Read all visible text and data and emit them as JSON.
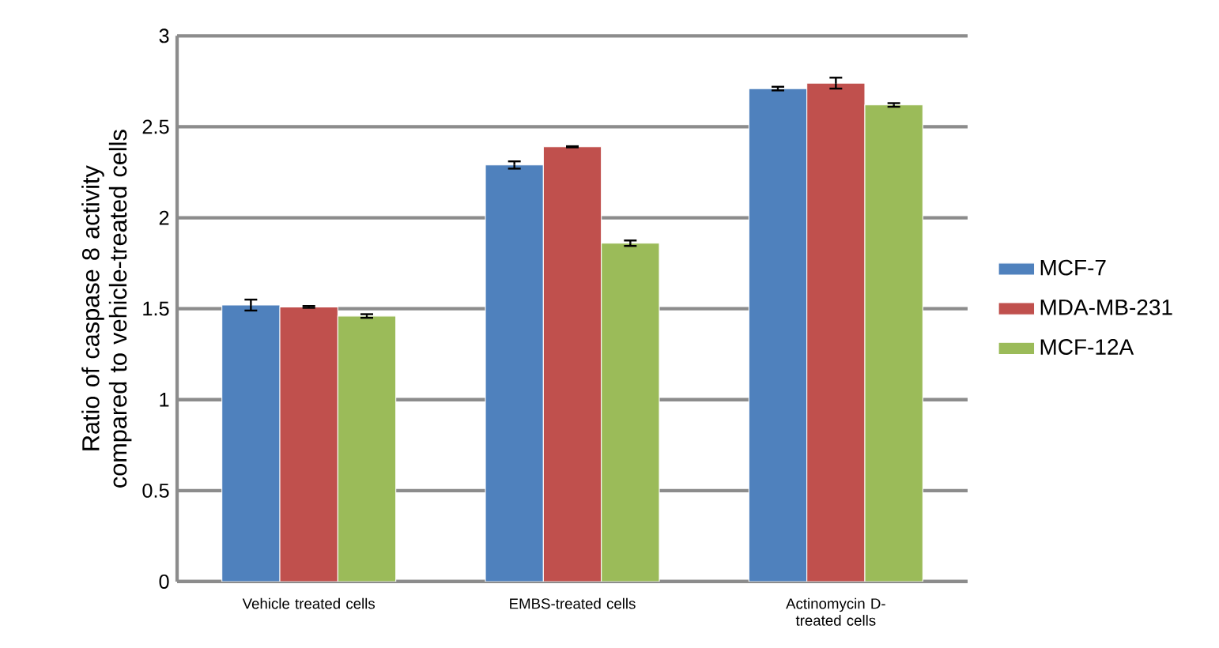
{
  "chart_data": {
    "type": "bar",
    "ylabel": "Ratio of caspase 8 activity compared to vehicle-treated cells",
    "categories": [
      "Vehicle treated cells",
      "EMBS-treated cells",
      "Actinomycin D-treated cells"
    ],
    "series": [
      {
        "name": "MCF-7",
        "color": "#4f81bd",
        "values": [
          1.52,
          2.29,
          2.71
        ],
        "errors": [
          0.03,
          0.02,
          0.01
        ]
      },
      {
        "name": "MDA-MB-231",
        "color": "#c0504d",
        "values": [
          1.51,
          2.39,
          2.74
        ],
        "errors": [
          0.005,
          0.003,
          0.03
        ]
      },
      {
        "name": "MCF-12A",
        "color": "#9bbb59",
        "values": [
          1.46,
          1.86,
          2.62
        ],
        "errors": [
          0.01,
          0.015,
          0.01
        ]
      }
    ],
    "ylim": [
      0,
      3
    ],
    "yticks": [
      0,
      0.5,
      1,
      1.5,
      2,
      2.5,
      3
    ],
    "grid": "y",
    "legend": "right"
  }
}
